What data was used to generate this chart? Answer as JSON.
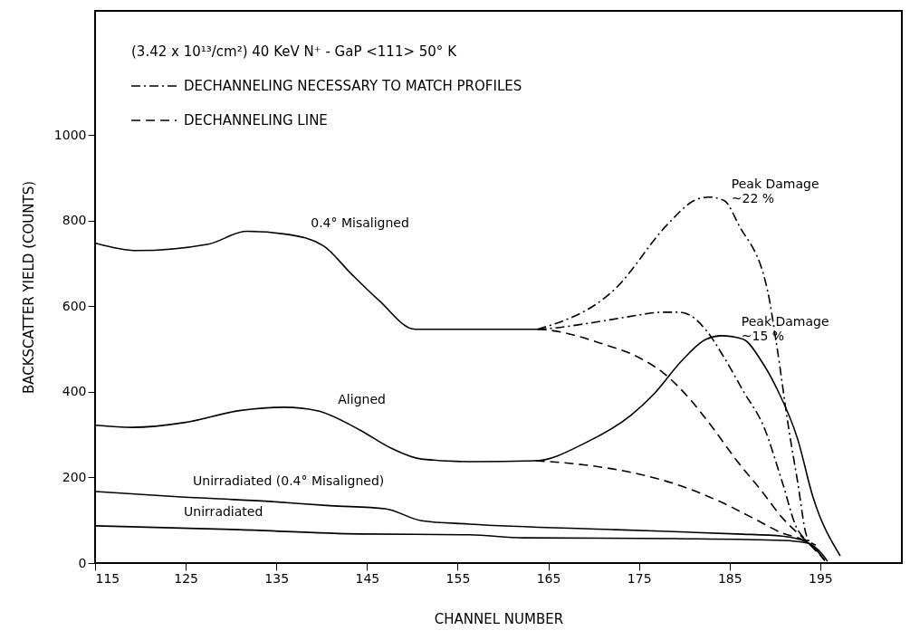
{
  "chart_data": {
    "type": "line",
    "xlabel": "CHANNEL NUMBER",
    "ylabel": "BACKSCATTER YIELD (COUNTS)",
    "xlim": [
      115,
      204
    ],
    "ylim": [
      0,
      1290
    ],
    "xticks": [
      115,
      125,
      135,
      145,
      155,
      165,
      175,
      185,
      195
    ],
    "yticks": [
      0,
      200,
      400,
      600,
      800,
      1000
    ],
    "grid": false,
    "legend": "top left",
    "marker": "none",
    "series": [
      {
        "color": "#000000",
        "line_style": "solid",
        "x": [
          115.1,
          119.6,
          127.5,
          131.7,
          136.2,
          140.2,
          143.2,
          146.3,
          150.3,
          155,
          163.8
        ],
        "values": [
          747,
          730,
          745,
          775,
          768,
          741,
          677,
          614,
          546,
          546,
          546
        ]
      },
      {
        "name": "DECHANNELING NECESSARY TO MATCH PROFILES",
        "color": "#000000",
        "line_style": "dotted",
        "x": [
          163.8,
          172.4,
          178.1,
          181.1,
          182.7,
          184.4,
          186,
          189.2,
          190.2,
          191.5,
          192.5,
          193.5,
          195
        ],
        "values": [
          546,
          641,
          790,
          847,
          855,
          847,
          790,
          635,
          508,
          317,
          190,
          63,
          21
        ]
      },
      {
        "color": "#000000",
        "line_style": "dotted",
        "x": [
          163.8,
          165.1,
          170,
          174,
          177.7,
          179.4,
          180.7,
          182.4,
          184.4,
          186.5,
          188.8,
          190.8,
          192.5,
          194.5
        ],
        "values": [
          546,
          548,
          562,
          576,
          586,
          586,
          578,
          544,
          480,
          402,
          317,
          190,
          78,
          42
        ]
      },
      {
        "name": "DECHANNELING LINE",
        "color": "#000000",
        "line_style": "dashed",
        "x": [
          163.8,
          165.1,
          170.7,
          175,
          177.7,
          180.7,
          183.1,
          185.8,
          188.5,
          190.8,
          193.2,
          194.8
        ],
        "values": [
          546,
          544,
          514,
          480,
          444,
          381,
          317,
          239,
          169,
          106,
          57,
          28
        ]
      },
      {
        "color": "#000000",
        "line_style": "solid",
        "x": [
          115.1,
          119.1,
          124.8,
          130.9,
          135.9,
          139.5,
          144.2,
          147.6,
          151,
          156.3,
          163.6,
          169.1,
          174.1,
          176.7,
          179.7,
          182.4,
          184.1,
          186.5,
          188.5,
          190.2,
          192.5,
          194.2,
          197.2
        ],
        "values": [
          322,
          317,
          328,
          356,
          364,
          356,
          311,
          269,
          243,
          237,
          239,
          281,
          345,
          396,
          472,
          523,
          531,
          523,
          472,
          408,
          290,
          154,
          17
        ]
      },
      {
        "color": "#000000",
        "line_style": "dashed",
        "x": [
          163.6,
          169.1,
          174.1,
          179.1,
          184.1,
          187.5,
          190.8,
          193.5,
          195.5
        ],
        "values": [
          239,
          229,
          212,
          184,
          142,
          106,
          70,
          49,
          6
        ]
      },
      {
        "color": "#000000",
        "line_style": "solid",
        "x": [
          115.1,
          124.1,
          134.2,
          140.9,
          147,
          151,
          156.3,
          172.4,
          185.8,
          190.8,
          193.5,
          195.2,
          195.8
        ],
        "values": [
          167,
          155,
          144,
          134,
          127,
          99,
          91,
          78,
          68,
          63,
          49,
          21,
          4
        ]
      },
      {
        "color": "#000000",
        "line_style": "solid",
        "x": [
          115.1,
          130.9,
          144.2,
          156.3,
          162.3,
          179.1,
          190.8,
          193.5,
          195.5
        ],
        "values": [
          87,
          78,
          68,
          66,
          59,
          57,
          53,
          47,
          6
        ]
      }
    ],
    "annotations": [
      "(3.42 x 10¹³/cm²) 40 KeV N⁺ - GaP <111>      50° K",
      {
        "text": "0.4° Misaligned",
        "x": 138,
        "y": 758
      },
      {
        "text": "Aligned",
        "x": 141,
        "y": 345
      },
      {
        "text": "Unirradiated (0.4° Misaligned)",
        "x": 125,
        "y": 154
      },
      {
        "text": "Unirradiated",
        "x": 124,
        "y": 82
      },
      {
        "text": "Peak Damage\n~22 %",
        "x": 184.4,
        "y": 847
      },
      {
        "text": "Peak Damage\n~15 %",
        "x": 185.5,
        "y": 527
      }
    ]
  }
}
